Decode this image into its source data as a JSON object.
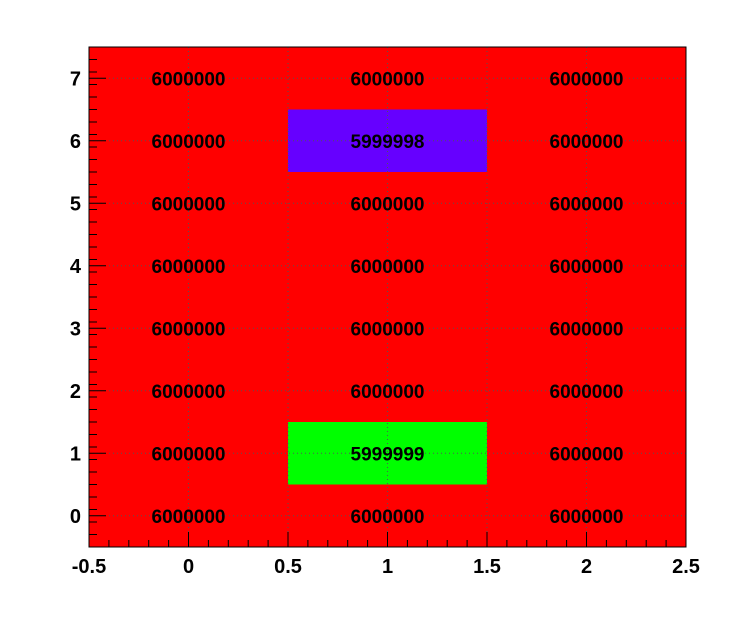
{
  "chart_data": {
    "type": "heatmap",
    "title": "",
    "xlabel": "",
    "ylabel": "",
    "x_bins": [
      0,
      1,
      2
    ],
    "y_bins": [
      0,
      1,
      2,
      3,
      4,
      5,
      6,
      7
    ],
    "xlim": [
      -0.5,
      2.5
    ],
    "ylim": [
      -0.5,
      7.5
    ],
    "x_ticks": [
      "-0.5",
      "0",
      "0.5",
      "1",
      "1.5",
      "2",
      "2.5"
    ],
    "y_ticks": [
      "0",
      "1",
      "2",
      "3",
      "4",
      "5",
      "6",
      "7"
    ],
    "grid": true,
    "cells": [
      {
        "x": 0,
        "y": 0,
        "value": 6000000,
        "label": "6000000",
        "color": "#ff0000"
      },
      {
        "x": 1,
        "y": 0,
        "value": 6000000,
        "label": "6000000",
        "color": "#ff0000"
      },
      {
        "x": 2,
        "y": 0,
        "value": 6000000,
        "label": "6000000",
        "color": "#ff0000"
      },
      {
        "x": 0,
        "y": 1,
        "value": 6000000,
        "label": "6000000",
        "color": "#ff0000"
      },
      {
        "x": 1,
        "y": 1,
        "value": 5999999,
        "label": "5999999",
        "color": "#00ff00"
      },
      {
        "x": 2,
        "y": 1,
        "value": 6000000,
        "label": "6000000",
        "color": "#ff0000"
      },
      {
        "x": 0,
        "y": 2,
        "value": 6000000,
        "label": "6000000",
        "color": "#ff0000"
      },
      {
        "x": 1,
        "y": 2,
        "value": 6000000,
        "label": "6000000",
        "color": "#ff0000"
      },
      {
        "x": 2,
        "y": 2,
        "value": 6000000,
        "label": "6000000",
        "color": "#ff0000"
      },
      {
        "x": 0,
        "y": 3,
        "value": 6000000,
        "label": "6000000",
        "color": "#ff0000"
      },
      {
        "x": 1,
        "y": 3,
        "value": 6000000,
        "label": "6000000",
        "color": "#ff0000"
      },
      {
        "x": 2,
        "y": 3,
        "value": 6000000,
        "label": "6000000",
        "color": "#ff0000"
      },
      {
        "x": 0,
        "y": 4,
        "value": 6000000,
        "label": "6000000",
        "color": "#ff0000"
      },
      {
        "x": 1,
        "y": 4,
        "value": 6000000,
        "label": "6000000",
        "color": "#ff0000"
      },
      {
        "x": 2,
        "y": 4,
        "value": 6000000,
        "label": "6000000",
        "color": "#ff0000"
      },
      {
        "x": 0,
        "y": 5,
        "value": 6000000,
        "label": "6000000",
        "color": "#ff0000"
      },
      {
        "x": 1,
        "y": 5,
        "value": 6000000,
        "label": "6000000",
        "color": "#ff0000"
      },
      {
        "x": 2,
        "y": 5,
        "value": 6000000,
        "label": "6000000",
        "color": "#ff0000"
      },
      {
        "x": 0,
        "y": 6,
        "value": 6000000,
        "label": "6000000",
        "color": "#ff0000"
      },
      {
        "x": 1,
        "y": 6,
        "value": 5999998,
        "label": "5999998",
        "color": "#6600ff"
      },
      {
        "x": 2,
        "y": 6,
        "value": 6000000,
        "label": "6000000",
        "color": "#ff0000"
      },
      {
        "x": 0,
        "y": 7,
        "value": 6000000,
        "label": "6000000",
        "color": "#ff0000"
      },
      {
        "x": 1,
        "y": 7,
        "value": 6000000,
        "label": "6000000",
        "color": "#ff0000"
      },
      {
        "x": 2,
        "y": 7,
        "value": 6000000,
        "label": "6000000",
        "color": "#ff0000"
      }
    ],
    "colors": {
      "background": "#ffffff",
      "frame": "#000000",
      "grid": "#555555",
      "text": "#000000"
    }
  }
}
